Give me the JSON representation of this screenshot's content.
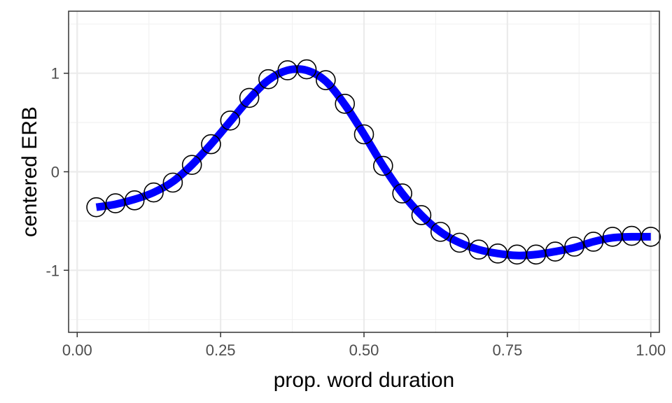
{
  "chart_data": {
    "type": "line",
    "title": "",
    "xlabel": "prop. word duration",
    "ylabel": "centered ERB",
    "xlim": [
      -0.015,
      1.015
    ],
    "ylim": [
      -1.63,
      1.63
    ],
    "x_ticks": [
      0.0,
      0.25,
      0.5,
      0.75,
      1.0
    ],
    "x_tick_labels": [
      "0.00",
      "0.25",
      "0.50",
      "0.75",
      "1.00"
    ],
    "y_ticks": [
      -1,
      0,
      1
    ],
    "y_tick_labels": [
      "-1",
      "0",
      "1"
    ],
    "x_minor": [
      0.125,
      0.375,
      0.625,
      0.875
    ],
    "y_minor": [
      -1.5,
      -0.5,
      0.5,
      1.5
    ],
    "grid": true,
    "theme": "bw",
    "colors": {
      "line": "#0000ff",
      "point_stroke": "#000000",
      "point_fill": "#ffffff"
    },
    "series": [
      {
        "kind": "points",
        "x": [
          0.0333,
          0.0667,
          0.1,
          0.1333,
          0.1667,
          0.2,
          0.2333,
          0.2667,
          0.3,
          0.3333,
          0.3667,
          0.4,
          0.4333,
          0.4667,
          0.5,
          0.5333,
          0.5667,
          0.6,
          0.6333,
          0.6667,
          0.7,
          0.7333,
          0.7667,
          0.8,
          0.8333,
          0.8667,
          0.9,
          0.9333,
          0.9667,
          1.0
        ],
        "values": [
          -0.36,
          -0.32,
          -0.29,
          -0.21,
          -0.11,
          0.07,
          0.28,
          0.52,
          0.75,
          0.94,
          1.03,
          1.04,
          0.93,
          0.69,
          0.38,
          0.06,
          -0.22,
          -0.44,
          -0.61,
          -0.72,
          -0.79,
          -0.83,
          -0.84,
          -0.84,
          -0.81,
          -0.76,
          -0.71,
          -0.66,
          -0.65,
          -0.66
        ]
      },
      {
        "kind": "smooth-line",
        "x": [
          0.0333,
          0.0667,
          0.1,
          0.1333,
          0.1667,
          0.2,
          0.2333,
          0.2667,
          0.3,
          0.3333,
          0.3667,
          0.4,
          0.4333,
          0.4667,
          0.5,
          0.5333,
          0.5667,
          0.6,
          0.6333,
          0.6667,
          0.7,
          0.7333,
          0.7667,
          0.8,
          0.8333,
          0.8667,
          0.9,
          0.9333,
          0.9667,
          1.0
        ],
        "values": [
          -0.36,
          -0.33,
          -0.28,
          -0.21,
          -0.1,
          0.07,
          0.28,
          0.51,
          0.74,
          0.93,
          1.03,
          1.03,
          0.92,
          0.68,
          0.38,
          0.06,
          -0.22,
          -0.44,
          -0.61,
          -0.72,
          -0.79,
          -0.83,
          -0.85,
          -0.84,
          -0.81,
          -0.77,
          -0.71,
          -0.67,
          -0.66,
          -0.66
        ]
      }
    ]
  }
}
